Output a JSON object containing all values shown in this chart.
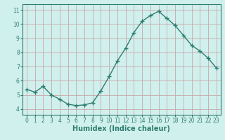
{
  "x": [
    0,
    1,
    2,
    3,
    4,
    5,
    6,
    7,
    8,
    9,
    10,
    11,
    12,
    13,
    14,
    15,
    16,
    17,
    18,
    19,
    20,
    21,
    22,
    23
  ],
  "y": [
    5.4,
    5.2,
    5.6,
    5.0,
    4.7,
    4.35,
    4.25,
    4.3,
    4.45,
    5.3,
    6.3,
    7.4,
    8.3,
    9.4,
    10.2,
    10.6,
    10.9,
    10.4,
    9.9,
    9.2,
    8.5,
    8.1,
    7.6,
    6.9
  ],
  "line_color": "#2e7d6e",
  "marker": "+",
  "marker_size": 4,
  "marker_edge_width": 1.0,
  "bg_color": "#d0f0ee",
  "grid_color": "#c8a8a8",
  "xlabel": "Humidex (Indice chaleur)",
  "ylim": [
    3.6,
    11.4
  ],
  "xlim": [
    -0.5,
    23.5
  ],
  "yticks": [
    4,
    5,
    6,
    7,
    8,
    9,
    10,
    11
  ],
  "xticks": [
    0,
    1,
    2,
    3,
    4,
    5,
    6,
    7,
    8,
    9,
    10,
    11,
    12,
    13,
    14,
    15,
    16,
    17,
    18,
    19,
    20,
    21,
    22,
    23
  ],
  "tick_label_size": 5.5,
  "xlabel_size": 7,
  "line_width": 1.0,
  "spine_color": "#2e7d6e",
  "tick_color": "#2e7d6e",
  "text_color": "#2e7d6e"
}
